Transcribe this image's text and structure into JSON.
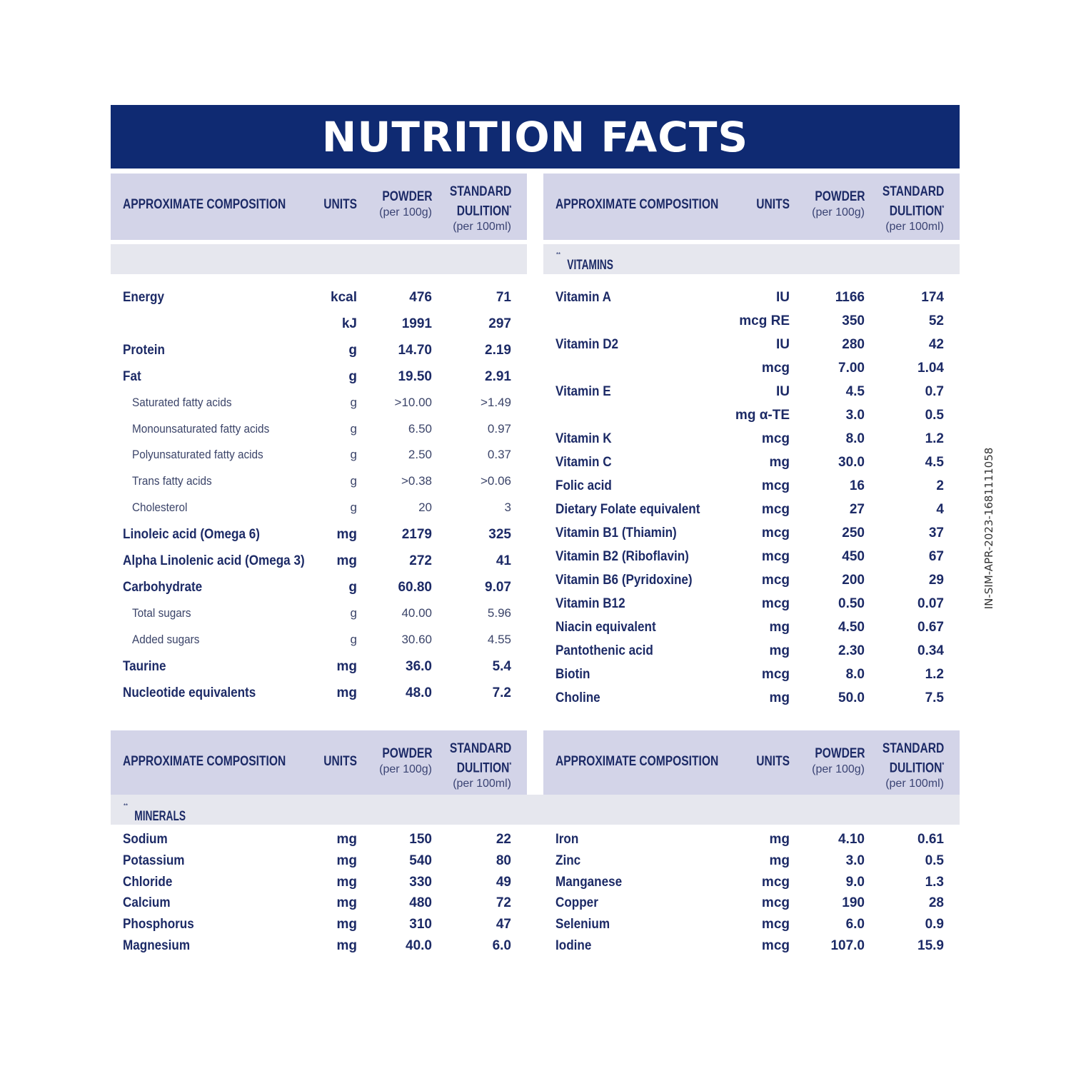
{
  "title": "NUTRITION FACTS",
  "header": {
    "composition": "APPROXIMATE COMPOSITION",
    "units": "UNITS",
    "powder": "POWDER",
    "powder_sub": "(per 100g)",
    "standard_1": "STANDARD",
    "standard_2": "DULITION",
    "standard_star": "*",
    "standard_sub": "(per 100ml)"
  },
  "sections": {
    "vitamins": "VITAMINS",
    "minerals": "MINERALS",
    "stars": "**"
  },
  "side_code": "IN-SIM-APR-2023-1681111058",
  "macros": [
    {
      "name": "Energy",
      "unit": "kcal",
      "powder": "476",
      "std": "71"
    },
    {
      "name": "",
      "unit": "kJ",
      "powder": "1991",
      "std": "297"
    },
    {
      "name": "Protein",
      "unit": "g",
      "powder": "14.70",
      "std": "2.19"
    },
    {
      "name": "Fat",
      "unit": "g",
      "powder": "19.50",
      "std": "2.91"
    },
    {
      "name": "Saturated fatty acids",
      "unit": "g",
      "powder": ">10.00",
      "std": ">1.49",
      "sub": true
    },
    {
      "name": "Monounsaturated fatty acids",
      "unit": "g",
      "powder": "6.50",
      "std": "0.97",
      "sub": true
    },
    {
      "name": "Polyunsaturated fatty acids",
      "unit": "g",
      "powder": "2.50",
      "std": "0.37",
      "sub": true
    },
    {
      "name": "Trans fatty acids",
      "unit": "g",
      "powder": ">0.38",
      "std": ">0.06",
      "sub": true
    },
    {
      "name": "Cholesterol",
      "unit": "g",
      "powder": "20",
      "std": "3",
      "sub": true
    },
    {
      "name": "Linoleic acid (Omega 6)",
      "unit": "mg",
      "powder": "2179",
      "std": "325"
    },
    {
      "name": "Alpha Linolenic acid (Omega 3)",
      "unit": "mg",
      "powder": "272",
      "std": "41"
    },
    {
      "name": "Carbohydrate",
      "unit": "g",
      "powder": "60.80",
      "std": "9.07"
    },
    {
      "name": "Total sugars",
      "unit": "g",
      "powder": "40.00",
      "std": "5.96",
      "sub": true
    },
    {
      "name": "Added sugars",
      "unit": "g",
      "powder": "30.60",
      "std": "4.55",
      "sub": true
    },
    {
      "name": "Taurine",
      "unit": "mg",
      "powder": "36.0",
      "std": "5.4"
    },
    {
      "name": "Nucleotide equivalents",
      "unit": "mg",
      "powder": "48.0",
      "std": "7.2"
    }
  ],
  "vitamins": [
    {
      "name": "Vitamin A",
      "unit": "IU",
      "powder": "1166",
      "std": "174"
    },
    {
      "name": "",
      "unit": "mcg RE",
      "powder": "350",
      "std": "52"
    },
    {
      "name": "Vitamin D2",
      "unit": "IU",
      "powder": "280",
      "std": "42"
    },
    {
      "name": "",
      "unit": "mcg",
      "powder": "7.00",
      "std": "1.04"
    },
    {
      "name": "Vitamin E",
      "unit": "IU",
      "powder": "4.5",
      "std": "0.7"
    },
    {
      "name": "",
      "unit": "mg α-TE",
      "powder": "3.0",
      "std": "0.5"
    },
    {
      "name": "Vitamin K",
      "unit": "mcg",
      "powder": "8.0",
      "std": "1.2"
    },
    {
      "name": "Vitamin C",
      "unit": "mg",
      "powder": "30.0",
      "std": "4.5"
    },
    {
      "name": "Folic acid",
      "unit": "mcg",
      "powder": "16",
      "std": "2"
    },
    {
      "name": "Dietary Folate equivalent",
      "unit": "mcg",
      "powder": "27",
      "std": "4"
    },
    {
      "name": "Vitamin B1 (Thiamin)",
      "unit": "mcg",
      "powder": "250",
      "std": "37"
    },
    {
      "name": "Vitamin B2 (Riboflavin)",
      "unit": "mcg",
      "powder": "450",
      "std": "67"
    },
    {
      "name": "Vitamin B6 (Pyridoxine)",
      "unit": "mcg",
      "powder": "200",
      "std": "29"
    },
    {
      "name": "Vitamin B12",
      "unit": "mcg",
      "powder": "0.50",
      "std": "0.07"
    },
    {
      "name": "Niacin equivalent",
      "unit": "mg",
      "powder": "4.50",
      "std": "0.67"
    },
    {
      "name": "Pantothenic acid",
      "unit": "mg",
      "powder": "2.30",
      "std": "0.34"
    },
    {
      "name": "Biotin",
      "unit": "mcg",
      "powder": "8.0",
      "std": "1.2"
    },
    {
      "name": "Choline",
      "unit": "mg",
      "powder": "50.0",
      "std": "7.5"
    }
  ],
  "minerals_left": [
    {
      "name": "Sodium",
      "unit": "mg",
      "powder": "150",
      "std": "22"
    },
    {
      "name": "Potassium",
      "unit": "mg",
      "powder": "540",
      "std": "80"
    },
    {
      "name": "Chloride",
      "unit": "mg",
      "powder": "330",
      "std": "49"
    },
    {
      "name": "Calcium",
      "unit": "mg",
      "powder": "480",
      "std": "72"
    },
    {
      "name": "Phosphorus",
      "unit": "mg",
      "powder": "310",
      "std": "47"
    },
    {
      "name": "Magnesium",
      "unit": "mg",
      "powder": "40.0",
      "std": "6.0"
    }
  ],
  "minerals_right": [
    {
      "name": "Iron",
      "unit": "mg",
      "powder": "4.10",
      "std": "0.61"
    },
    {
      "name": "Zinc",
      "unit": "mg",
      "powder": "3.0",
      "std": "0.5"
    },
    {
      "name": "Manganese",
      "unit": "mcg",
      "powder": "9.0",
      "std": "1.3"
    },
    {
      "name": "Copper",
      "unit": "mcg",
      "powder": "190",
      "std": "28"
    },
    {
      "name": "Selenium",
      "unit": "mcg",
      "powder": "6.0",
      "std": "0.9"
    },
    {
      "name": "Iodine",
      "unit": "mcg",
      "powder": "107.0",
      "std": "15.9"
    }
  ]
}
